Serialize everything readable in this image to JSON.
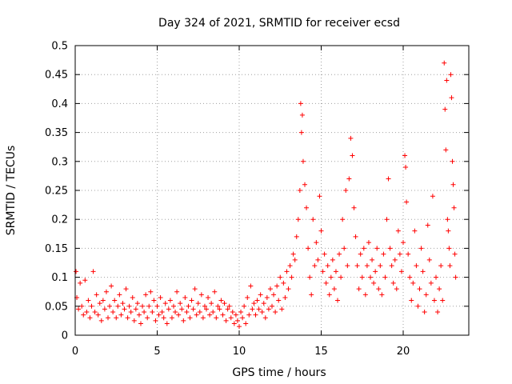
{
  "chart_data": {
    "type": "scatter",
    "title": "Day 324 of 2021, SRMTID for receiver ecsd",
    "xlabel": "GPS time / hours",
    "ylabel": "SRMTID / TECUs",
    "xlim": [
      0,
      24
    ],
    "ylim": [
      0,
      0.5
    ],
    "xticks": [
      0,
      5,
      10,
      15,
      20
    ],
    "xtick_labels": [
      "0",
      "5",
      "10",
      "15",
      "20"
    ],
    "yticks": [
      0,
      0.05,
      0.1,
      0.15,
      0.2,
      0.25,
      0.3,
      0.35,
      0.4,
      0.45,
      0.5
    ],
    "ytick_labels": [
      "0",
      "0.05",
      "0.1",
      "0.15",
      "0.2",
      "0.25",
      "0.3",
      "0.35",
      "0.4",
      "0.45",
      "0.5"
    ],
    "grid": true,
    "marker": "+",
    "color": "#ff0000",
    "series": [
      {
        "name": "SRMTID",
        "points": [
          [
            0.05,
            0.11
          ],
          [
            0.1,
            0.065
          ],
          [
            0.2,
            0.045
          ],
          [
            0.3,
            0.09
          ],
          [
            0.4,
            0.05
          ],
          [
            0.5,
            0.035
          ],
          [
            0.6,
            0.095
          ],
          [
            0.7,
            0.04
          ],
          [
            0.8,
            0.06
          ],
          [
            0.9,
            0.03
          ],
          [
            1.0,
            0.05
          ],
          [
            1.1,
            0.11
          ],
          [
            1.2,
            0.04
          ],
          [
            1.3,
            0.07
          ],
          [
            1.4,
            0.035
          ],
          [
            1.5,
            0.055
          ],
          [
            1.6,
            0.025
          ],
          [
            1.7,
            0.06
          ],
          [
            1.8,
            0.045
          ],
          [
            1.9,
            0.075
          ],
          [
            2.0,
            0.03
          ],
          [
            2.1,
            0.05
          ],
          [
            2.2,
            0.085
          ],
          [
            2.3,
            0.04
          ],
          [
            2.4,
            0.06
          ],
          [
            2.5,
            0.03
          ],
          [
            2.6,
            0.05
          ],
          [
            2.7,
            0.07
          ],
          [
            2.8,
            0.035
          ],
          [
            2.9,
            0.055
          ],
          [
            3.0,
            0.045
          ],
          [
            3.1,
            0.08
          ],
          [
            3.2,
            0.03
          ],
          [
            3.3,
            0.05
          ],
          [
            3.4,
            0.04
          ],
          [
            3.5,
            0.065
          ],
          [
            3.6,
            0.025
          ],
          [
            3.7,
            0.045
          ],
          [
            3.8,
            0.055
          ],
          [
            3.9,
            0.035
          ],
          [
            4.0,
            0.02
          ],
          [
            4.1,
            0.05
          ],
          [
            4.2,
            0.04
          ],
          [
            4.3,
            0.07
          ],
          [
            4.4,
            0.03
          ],
          [
            4.5,
            0.05
          ],
          [
            4.6,
            0.075
          ],
          [
            4.7,
            0.04
          ],
          [
            4.8,
            0.06
          ],
          [
            4.9,
            0.025
          ],
          [
            5.0,
            0.05
          ],
          [
            5.1,
            0.035
          ],
          [
            5.2,
            0.065
          ],
          [
            5.3,
            0.04
          ],
          [
            5.4,
            0.03
          ],
          [
            5.5,
            0.055
          ],
          [
            5.6,
            0.02
          ],
          [
            5.7,
            0.045
          ],
          [
            5.8,
            0.06
          ],
          [
            5.9,
            0.03
          ],
          [
            6.0,
            0.05
          ],
          [
            6.1,
            0.04
          ],
          [
            6.2,
            0.075
          ],
          [
            6.3,
            0.035
          ],
          [
            6.4,
            0.055
          ],
          [
            6.5,
            0.045
          ],
          [
            6.6,
            0.025
          ],
          [
            6.7,
            0.065
          ],
          [
            6.8,
            0.04
          ],
          [
            6.9,
            0.05
          ],
          [
            7.0,
            0.03
          ],
          [
            7.1,
            0.06
          ],
          [
            7.2,
            0.045
          ],
          [
            7.3,
            0.08
          ],
          [
            7.4,
            0.035
          ],
          [
            7.5,
            0.055
          ],
          [
            7.6,
            0.04
          ],
          [
            7.7,
            0.07
          ],
          [
            7.8,
            0.03
          ],
          [
            7.9,
            0.05
          ],
          [
            8.0,
            0.045
          ],
          [
            8.1,
            0.065
          ],
          [
            8.2,
            0.035
          ],
          [
            8.3,
            0.055
          ],
          [
            8.4,
            0.04
          ],
          [
            8.5,
            0.075
          ],
          [
            8.6,
            0.03
          ],
          [
            8.7,
            0.05
          ],
          [
            8.8,
            0.045
          ],
          [
            8.9,
            0.06
          ],
          [
            9.0,
            0.035
          ],
          [
            9.1,
            0.055
          ],
          [
            9.2,
            0.025
          ],
          [
            9.3,
            0.045
          ],
          [
            9.4,
            0.05
          ],
          [
            9.5,
            0.03
          ],
          [
            9.6,
            0.04
          ],
          [
            9.7,
            0.02
          ],
          [
            9.8,
            0.035
          ],
          [
            9.9,
            0.025
          ],
          [
            10.0,
            0.015
          ],
          [
            10.1,
            0.04
          ],
          [
            10.2,
            0.03
          ],
          [
            10.3,
            0.05
          ],
          [
            10.4,
            0.02
          ],
          [
            10.5,
            0.065
          ],
          [
            10.6,
            0.035
          ],
          [
            10.7,
            0.085
          ],
          [
            10.8,
            0.045
          ],
          [
            10.9,
            0.055
          ],
          [
            11.0,
            0.035
          ],
          [
            11.1,
            0.06
          ],
          [
            11.2,
            0.045
          ],
          [
            11.3,
            0.07
          ],
          [
            11.4,
            0.04
          ],
          [
            11.5,
            0.055
          ],
          [
            11.6,
            0.03
          ],
          [
            11.7,
            0.065
          ],
          [
            11.8,
            0.045
          ],
          [
            11.9,
            0.08
          ],
          [
            12.0,
            0.05
          ],
          [
            12.1,
            0.07
          ],
          [
            12.2,
            0.04
          ],
          [
            12.3,
            0.085
          ],
          [
            12.4,
            0.06
          ],
          [
            12.5,
            0.1
          ],
          [
            12.6,
            0.045
          ],
          [
            12.7,
            0.09
          ],
          [
            12.8,
            0.065
          ],
          [
            12.9,
            0.11
          ],
          [
            13.0,
            0.08
          ],
          [
            13.1,
            0.12
          ],
          [
            13.2,
            0.1
          ],
          [
            13.3,
            0.14
          ],
          [
            13.4,
            0.13
          ],
          [
            13.5,
            0.17
          ],
          [
            13.6,
            0.2
          ],
          [
            13.7,
            0.25
          ],
          [
            13.75,
            0.4
          ],
          [
            13.8,
            0.35
          ],
          [
            13.85,
            0.38
          ],
          [
            13.9,
            0.3
          ],
          [
            14.0,
            0.26
          ],
          [
            14.1,
            0.22
          ],
          [
            14.2,
            0.15
          ],
          [
            14.3,
            0.1
          ],
          [
            14.4,
            0.07
          ],
          [
            14.5,
            0.2
          ],
          [
            14.6,
            0.12
          ],
          [
            14.7,
            0.16
          ],
          [
            14.8,
            0.13
          ],
          [
            14.9,
            0.24
          ],
          [
            15.0,
            0.18
          ],
          [
            15.1,
            0.11
          ],
          [
            15.2,
            0.14
          ],
          [
            15.3,
            0.09
          ],
          [
            15.4,
            0.12
          ],
          [
            15.5,
            0.07
          ],
          [
            15.6,
            0.1
          ],
          [
            15.7,
            0.13
          ],
          [
            15.8,
            0.08
          ],
          [
            15.9,
            0.11
          ],
          [
            16.0,
            0.06
          ],
          [
            16.1,
            0.14
          ],
          [
            16.2,
            0.1
          ],
          [
            16.3,
            0.2
          ],
          [
            16.4,
            0.15
          ],
          [
            16.5,
            0.25
          ],
          [
            16.6,
            0.12
          ],
          [
            16.7,
            0.27
          ],
          [
            16.8,
            0.34
          ],
          [
            16.9,
            0.31
          ],
          [
            17.0,
            0.22
          ],
          [
            17.1,
            0.17
          ],
          [
            17.2,
            0.12
          ],
          [
            17.3,
            0.08
          ],
          [
            17.4,
            0.14
          ],
          [
            17.5,
            0.1
          ],
          [
            17.6,
            0.15
          ],
          [
            17.7,
            0.07
          ],
          [
            17.8,
            0.12
          ],
          [
            17.9,
            0.16
          ],
          [
            18.0,
            0.1
          ],
          [
            18.1,
            0.13
          ],
          [
            18.2,
            0.09
          ],
          [
            18.3,
            0.11
          ],
          [
            18.4,
            0.15
          ],
          [
            18.5,
            0.08
          ],
          [
            18.6,
            0.12
          ],
          [
            18.7,
            0.07
          ],
          [
            18.8,
            0.14
          ],
          [
            18.9,
            0.1
          ],
          [
            19.0,
            0.2
          ],
          [
            19.1,
            0.27
          ],
          [
            19.2,
            0.15
          ],
          [
            19.3,
            0.12
          ],
          [
            19.4,
            0.09
          ],
          [
            19.5,
            0.13
          ],
          [
            19.6,
            0.08
          ],
          [
            19.7,
            0.18
          ],
          [
            19.8,
            0.14
          ],
          [
            19.9,
            0.11
          ],
          [
            20.0,
            0.16
          ],
          [
            20.1,
            0.31
          ],
          [
            20.15,
            0.29
          ],
          [
            20.2,
            0.23
          ],
          [
            20.3,
            0.14
          ],
          [
            20.4,
            0.1
          ],
          [
            20.5,
            0.06
          ],
          [
            20.6,
            0.09
          ],
          [
            20.7,
            0.18
          ],
          [
            20.8,
            0.12
          ],
          [
            20.9,
            0.05
          ],
          [
            21.0,
            0.08
          ],
          [
            21.1,
            0.15
          ],
          [
            21.2,
            0.11
          ],
          [
            21.3,
            0.04
          ],
          [
            21.4,
            0.07
          ],
          [
            21.5,
            0.19
          ],
          [
            21.6,
            0.13
          ],
          [
            21.7,
            0.09
          ],
          [
            21.8,
            0.24
          ],
          [
            21.9,
            0.06
          ],
          [
            22.0,
            0.1
          ],
          [
            22.1,
            0.04
          ],
          [
            22.2,
            0.08
          ],
          [
            22.3,
            0.12
          ],
          [
            22.4,
            0.06
          ],
          [
            22.5,
            0.47
          ],
          [
            22.55,
            0.39
          ],
          [
            22.6,
            0.32
          ],
          [
            22.65,
            0.44
          ],
          [
            22.7,
            0.2
          ],
          [
            22.75,
            0.18
          ],
          [
            22.8,
            0.15
          ],
          [
            22.85,
            0.12
          ],
          [
            22.9,
            0.45
          ],
          [
            22.95,
            0.41
          ],
          [
            23.0,
            0.3
          ],
          [
            23.05,
            0.26
          ],
          [
            23.1,
            0.22
          ],
          [
            23.15,
            0.14
          ],
          [
            23.2,
            0.1
          ]
        ]
      }
    ]
  }
}
